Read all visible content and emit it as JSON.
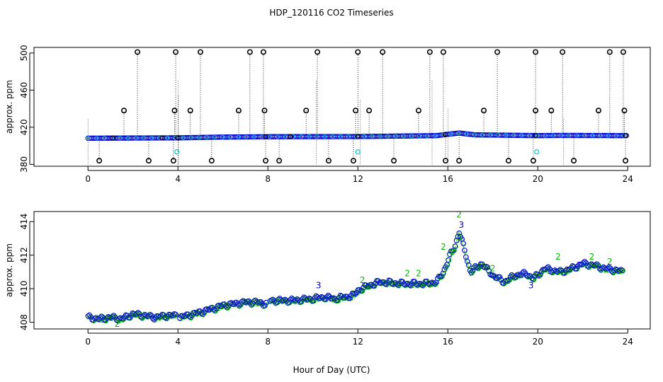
{
  "title": "HDP_120116  CO2 Timeseries",
  "xlabel": "Hour of Day (UTC)",
  "colors": {
    "outline": "#000000",
    "series_blue": "#0000cc",
    "series_cyan": "#00cccc",
    "series_green": "#00bb00"
  },
  "chart_data": [
    {
      "type": "scatter",
      "ylabel": "approx. ppm",
      "xlim": [
        -2.4,
        25.0
      ],
      "ylim": [
        378,
        506
      ],
      "x_ticks": [
        0,
        4,
        8,
        12,
        16,
        20,
        24
      ],
      "x_tick_labels": [
        "0",
        "4",
        "8",
        "12",
        "16",
        "20",
        "24"
      ],
      "y_ticks": [
        380,
        420,
        460,
        500
      ],
      "y_tick_labels": [
        "380",
        "420",
        "460",
        "500"
      ],
      "series": [
        {
          "marker": "circle",
          "baseline": [
            [
              0,
              408.2
            ],
            [
              4,
              408.6
            ],
            [
              6,
              409.4
            ],
            [
              8,
              409.8
            ],
            [
              12,
              410.0
            ],
            [
              15.5,
              411.0
            ],
            [
              16.5,
              413.8
            ],
            [
              17.2,
              411.8
            ],
            [
              20,
              411.0
            ],
            [
              21,
              411.2
            ],
            [
              24,
              411.0
            ]
          ],
          "spikes_high": [
            2.2,
            3.9,
            5.0,
            7.2,
            7.8,
            10.2,
            12.0,
            13.1,
            15.2,
            15.8,
            18.2,
            19.9,
            21.1,
            23.2,
            23.8
          ],
          "spikes_mid": [
            1.6,
            3.85,
            4.55,
            6.7,
            7.85,
            9.7,
            11.9,
            12.5,
            14.7,
            17.6,
            19.9,
            20.6,
            22.7,
            23.85
          ],
          "spikes_low": [
            0.5,
            2.7,
            3.8,
            5.5,
            7.9,
            8.5,
            10.7,
            11.8,
            13.6,
            15.9,
            16.5,
            18.7,
            19.8,
            21.6,
            23.9
          ],
          "outliers": [
            [
              3.95,
              393.5
            ],
            [
              12.0,
              393.5
            ],
            [
              19.95,
              393.5
            ]
          ]
        }
      ]
    },
    {
      "type": "scatter",
      "ylabel": "approx. ppm",
      "xlim": [
        -2.4,
        25.0
      ],
      "ylim": [
        407.6,
        414.6
      ],
      "x_ticks": [
        0,
        4,
        8,
        12,
        16,
        20,
        24
      ],
      "x_tick_labels": [
        "0",
        "4",
        "8",
        "12",
        "16",
        "20",
        "24"
      ],
      "y_ticks": [
        408,
        410,
        412,
        414
      ],
      "y_tick_labels": [
        "408",
        "410",
        "412",
        "414"
      ],
      "series": [
        {
          "marker": "circle",
          "points": [
            [
              0,
              408.3
            ],
            [
              0.5,
              408.2
            ],
            [
              1,
              408.3
            ],
            [
              1.5,
              408.2
            ],
            [
              2,
              408.5
            ],
            [
              2.5,
              408.4
            ],
            [
              3,
              408.3
            ],
            [
              3.5,
              408.4
            ],
            [
              3.9,
              408.4
            ],
            [
              4.1,
              408.3
            ],
            [
              5,
              408.6
            ],
            [
              6,
              409.0
            ],
            [
              7,
              409.2
            ],
            [
              7.5,
              409.2
            ],
            [
              7.9,
              409.1
            ],
            [
              8.1,
              409.3
            ],
            [
              9,
              409.3
            ],
            [
              10,
              409.4
            ],
            [
              10.5,
              409.5
            ],
            [
              11,
              409.4
            ],
            [
              11.8,
              409.6
            ],
            [
              12,
              409.9
            ],
            [
              12.5,
              410.2
            ],
            [
              13,
              410.4
            ],
            [
              14,
              410.3
            ],
            [
              15,
              410.3
            ],
            [
              15.5,
              410.4
            ],
            [
              15.8,
              411.0
            ],
            [
              16.1,
              412.0
            ],
            [
              16.3,
              412.5
            ],
            [
              16.5,
              413.4
            ],
            [
              16.8,
              412.0
            ],
            [
              17,
              411.0
            ],
            [
              17.5,
              411.5
            ],
            [
              18,
              410.8
            ],
            [
              18.5,
              410.4
            ],
            [
              19,
              410.8
            ],
            [
              19.5,
              410.9
            ],
            [
              19.8,
              410.6
            ],
            [
              20.3,
              411.2
            ],
            [
              21,
              411.0
            ],
            [
              21.5,
              411.2
            ],
            [
              22,
              411.5
            ],
            [
              22.5,
              411.4
            ],
            [
              23,
              411.2
            ],
            [
              23.5,
              411.1
            ],
            [
              23.8,
              411.0
            ]
          ]
        },
        {
          "marker": "digit",
          "glyphs": [
            {
              "x": 10.25,
              "y": 410.2,
              "text": "3"
            },
            {
              "x": 19.7,
              "y": 410.2,
              "text": "3"
            },
            {
              "x": 16.6,
              "y": 413.8,
              "text": "3"
            },
            {
              "x": 15.8,
              "y": 412.5,
              "text": "2"
            },
            {
              "x": 16.5,
              "y": 414.4,
              "text": "2"
            },
            {
              "x": 16.2,
              "y": 412.2,
              "text": "2"
            },
            {
              "x": 1.3,
              "y": 407.9,
              "text": "2"
            },
            {
              "x": 12.2,
              "y": 410.5,
              "text": "2"
            },
            {
              "x": 14.2,
              "y": 410.9,
              "text": "2"
            },
            {
              "x": 14.7,
              "y": 410.9,
              "text": "2"
            },
            {
              "x": 18.0,
              "y": 411.2,
              "text": "2"
            },
            {
              "x": 20.9,
              "y": 411.9,
              "text": "2"
            },
            {
              "x": 22.4,
              "y": 411.9,
              "text": "2"
            },
            {
              "x": 23.2,
              "y": 411.6,
              "text": "2"
            }
          ]
        }
      ]
    }
  ]
}
